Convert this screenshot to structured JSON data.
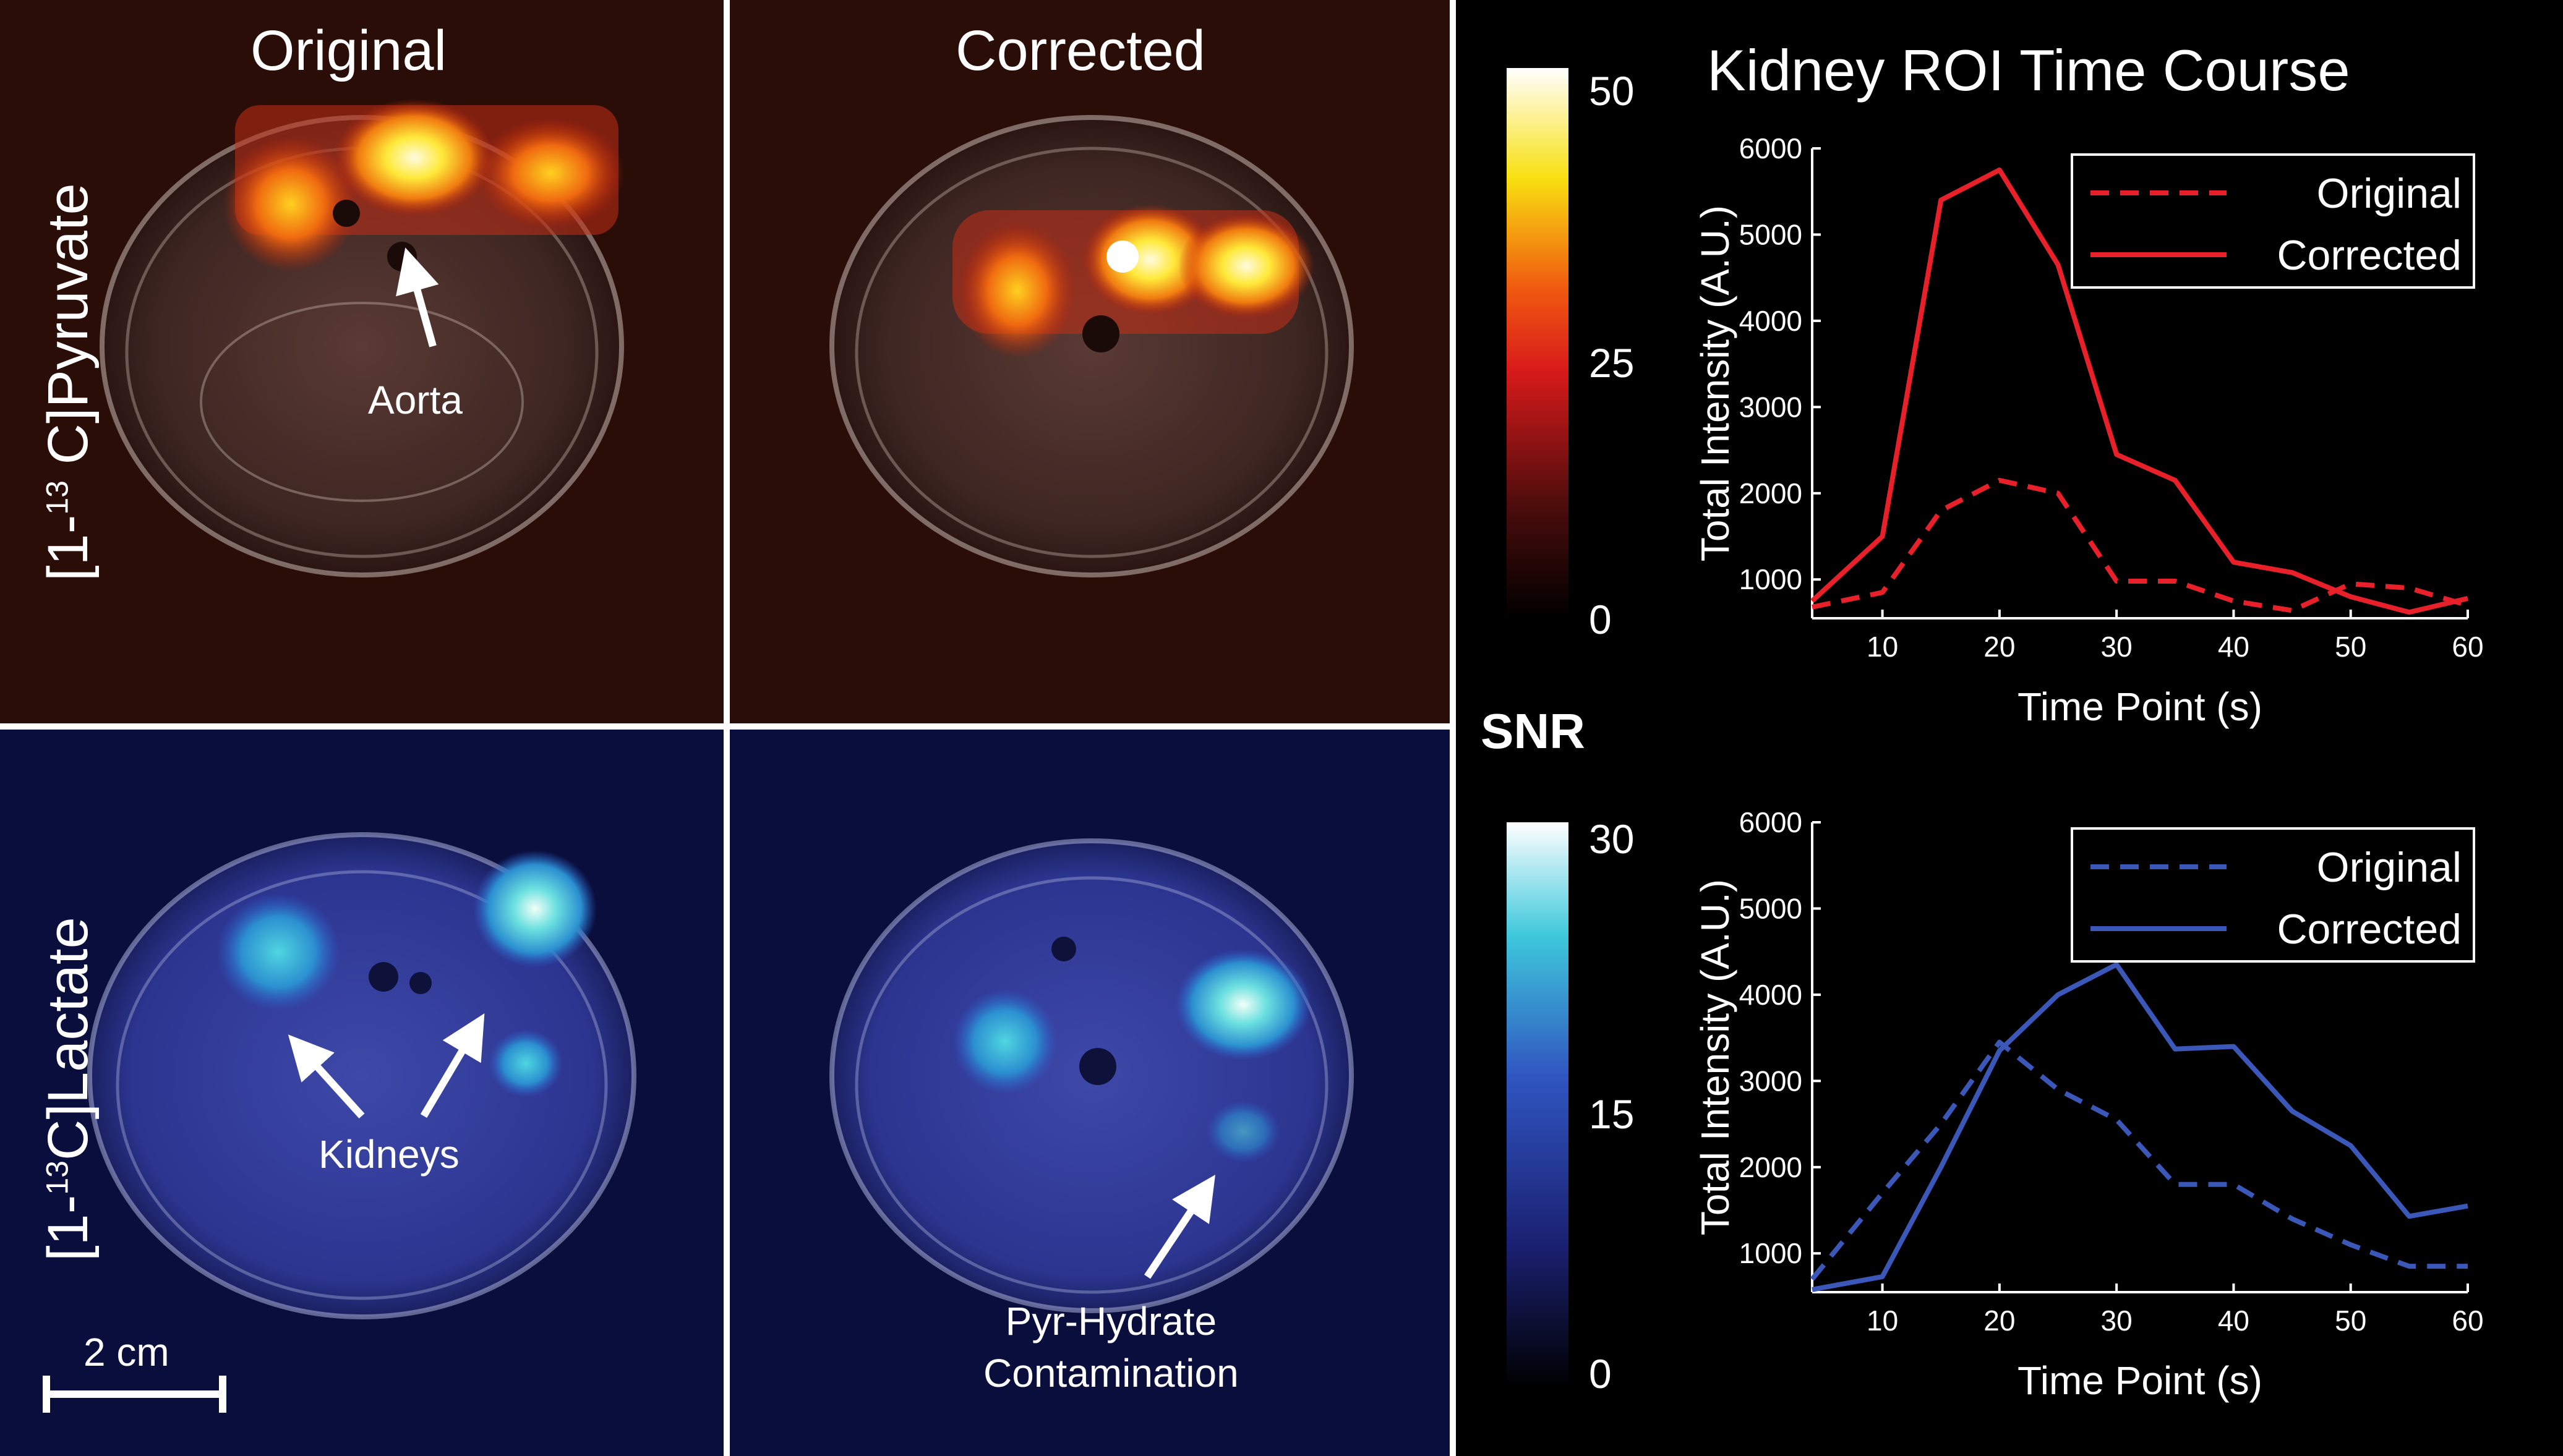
{
  "panels": {
    "col_original": "Original",
    "col_corrected": "Corrected",
    "row_pyruvate": {
      "pre": "[1-",
      "sup": "13",
      "post": " C]Pyruvate"
    },
    "row_lactate": {
      "pre": "[1-",
      "sup": "13",
      "post": "C]Lactate"
    },
    "aorta": "Aorta",
    "kidneys": "Kidneys",
    "pyr_hydrate_1": "Pyr-Hydrate",
    "pyr_hydrate_2": "Contamination",
    "scalebar": "2 cm"
  },
  "colorbars": {
    "snr_label": "SNR",
    "pyruvate": {
      "max": "50",
      "mid": "25",
      "min": "0"
    },
    "lactate": {
      "max": "30",
      "mid": "15",
      "min": "0"
    }
  },
  "colors": {
    "red": "#e8202a",
    "blue": "#3b57b8"
  },
  "chart_title": "Kidney ROI Time Course",
  "chart_data": [
    {
      "type": "line",
      "title": "Kidney ROI Time Course",
      "xlabel": "Time Point (s)",
      "ylabel": "Total Intensity (A.U.)",
      "xlim": [
        4,
        60
      ],
      "ylim": [
        550,
        6000
      ],
      "xticks": [
        "10",
        "20",
        "30",
        "40",
        "50",
        "60"
      ],
      "yticks": [
        "1000",
        "2000",
        "3000",
        "4000",
        "5000",
        "6000"
      ],
      "legend": "top-right",
      "series": [
        {
          "name": "Original",
          "style": "dashed",
          "color": "#e8202a",
          "x": [
            4,
            10,
            15,
            20,
            25,
            30,
            35,
            40,
            45,
            50,
            55,
            60
          ],
          "y": [
            680,
            850,
            1800,
            2150,
            2000,
            980,
            980,
            750,
            640,
            950,
            900,
            700
          ]
        },
        {
          "name": "Corrected",
          "style": "solid",
          "color": "#e8202a",
          "x": [
            4,
            10,
            15,
            20,
            25,
            30,
            35,
            40,
            45,
            50,
            55,
            60
          ],
          "y": [
            750,
            1500,
            5400,
            5750,
            4650,
            2450,
            2150,
            1200,
            1080,
            800,
            620,
            780
          ]
        }
      ]
    },
    {
      "type": "line",
      "title": "",
      "xlabel": "Time Point (s)",
      "ylabel": "Total Intensity (A.U.)",
      "xlim": [
        4,
        60
      ],
      "ylim": [
        550,
        6000
      ],
      "xticks": [
        "10",
        "20",
        "30",
        "40",
        "50",
        "60"
      ],
      "yticks": [
        "1000",
        "2000",
        "3000",
        "4000",
        "5000",
        "6000"
      ],
      "legend": "top-right",
      "series": [
        {
          "name": "Original",
          "style": "dashed",
          "color": "#3b57b8",
          "x": [
            4,
            10,
            15,
            20,
            25,
            30,
            35,
            40,
            45,
            50,
            55,
            60
          ],
          "y": [
            700,
            1700,
            2500,
            3450,
            2900,
            2550,
            1800,
            1800,
            1400,
            1100,
            850,
            850
          ]
        },
        {
          "name": "Corrected",
          "style": "solid",
          "color": "#3b57b8",
          "x": [
            4,
            10,
            15,
            20,
            25,
            30,
            35,
            40,
            45,
            50,
            55,
            60
          ],
          "y": [
            580,
            730,
            2000,
            3350,
            4000,
            4350,
            3370,
            3400,
            2650,
            2250,
            1430,
            1550
          ]
        }
      ]
    }
  ]
}
